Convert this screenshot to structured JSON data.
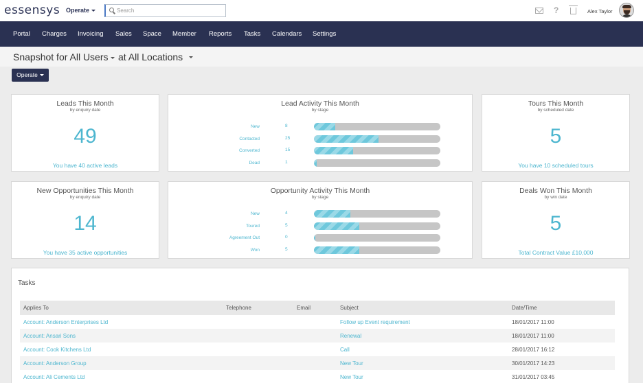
{
  "brand": {
    "logo_text": "essensys"
  },
  "topbar": {
    "operate_label": "Operate",
    "search_placeholder": "Search",
    "user_name": "Alex Taylor"
  },
  "nav": {
    "items": [
      "Portal",
      "Charges",
      "Invoicing",
      "Sales",
      "Space",
      "Member",
      "Reports",
      "Tasks",
      "Calendars",
      "Settings"
    ]
  },
  "header": {
    "title": "Snapshot for All Users",
    "location": "at All Locations",
    "operate_button": "Operate"
  },
  "cards": {
    "leads": {
      "title": "Leads This Month",
      "subtitle": "by enquiry date",
      "value": "49",
      "footer": "You have 40 active leads"
    },
    "tours": {
      "title": "Tours This Month",
      "subtitle": "by scheduled date",
      "value": "5",
      "footer": "You have 10 scheduled tours"
    },
    "opportunities": {
      "title": "New Opportunities This Month",
      "subtitle": "by enquiry date",
      "value": "14",
      "footer": "You have 35 active opportunities"
    },
    "deals": {
      "title": "Deals Won This Month",
      "subtitle": "by win date",
      "value": "5",
      "footer": "Total Contract Value £10,000"
    },
    "lead_activity": {
      "title": "Lead Activity This Month",
      "subtitle": "by stage",
      "rows": [
        {
          "label": "New",
          "count": "8",
          "fill": 0.17
        },
        {
          "label": "Contacted",
          "count": "25",
          "fill": 0.51
        },
        {
          "label": "Converted",
          "count": "15",
          "fill": 0.31
        },
        {
          "label": "Dead",
          "count": "1",
          "fill": 0.02
        }
      ]
    },
    "opportunity_activity": {
      "title": "Opportunity Activity This Month",
      "subtitle": "by stage",
      "rows": [
        {
          "label": "New",
          "count": "4",
          "fill": 0.29
        },
        {
          "label": "Toured",
          "count": "5",
          "fill": 0.36
        },
        {
          "label": "Agreement Out",
          "count": "0",
          "fill": 0.0
        },
        {
          "label": "Won",
          "count": "5",
          "fill": 0.36
        }
      ]
    }
  },
  "tasks": {
    "title": "Tasks",
    "columns": [
      "Applies To",
      "Telephone",
      "Email",
      "Subject",
      "Date/Time"
    ],
    "rows": [
      {
        "applies_to": "Account: Anderson Enterprises Ltd",
        "telephone": "",
        "email": "",
        "subject": "Follow up Event requirement",
        "datetime": "18/01/2017 11:00"
      },
      {
        "applies_to": "Account: Ansari Sons",
        "telephone": "",
        "email": "",
        "subject": "Renewal",
        "datetime": "18/01/2017 11:00"
      },
      {
        "applies_to": "Account: Cook Kitchens Ltd",
        "telephone": "",
        "email": "",
        "subject": "Call",
        "datetime": "28/01/2017 16:12"
      },
      {
        "applies_to": "Account: Anderson Group",
        "telephone": "",
        "email": "",
        "subject": "New Tour",
        "datetime": "30/01/2017 14:23"
      },
      {
        "applies_to": "Account: Ali Cements Ltd",
        "telephone": "",
        "email": "",
        "subject": "New Tour",
        "datetime": "31/01/2017 03:45"
      }
    ]
  },
  "colors": {
    "nav_bg": "#2a3152",
    "accent": "#4db6cf",
    "bar_track": "#c6c6c6"
  },
  "icons": [
    "search-icon",
    "mail-icon",
    "help-icon",
    "trash-icon",
    "avatar"
  ]
}
